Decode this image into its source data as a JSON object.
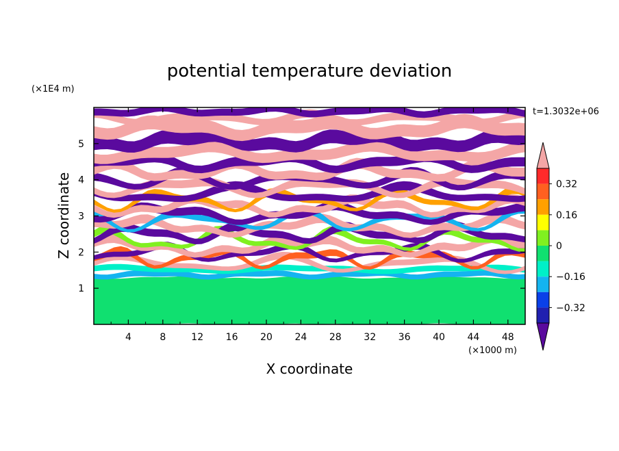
{
  "chart_data": {
    "type": "heatmap",
    "title": "potential temperature deviation",
    "xlabel": "X coordinate",
    "ylabel": "Z coordinate",
    "x_unit": "(×1000 m)",
    "y_unit": "(×1E4 m)",
    "time_label": "t=1.3032e+06",
    "xlim": [
      0,
      50
    ],
    "ylim": [
      0,
      6
    ],
    "x_ticks": [
      "4",
      "8",
      "12",
      "16",
      "20",
      "24",
      "28",
      "32",
      "36",
      "40",
      "44",
      "48"
    ],
    "y_ticks": [
      "1",
      "2",
      "3",
      "4",
      "5"
    ],
    "colorbar": {
      "labels": [
        "0.32",
        "0.16",
        "0",
        "−0.16",
        "−0.32"
      ],
      "label_values": [
        0.32,
        0.16,
        0,
        -0.16,
        -0.32
      ],
      "levels": [
        -0.4,
        -0.32,
        -0.24,
        -0.16,
        -0.08,
        0,
        0.08,
        0.16,
        0.24,
        0.32,
        0.4
      ],
      "colors": [
        "#5a0a9e",
        "#2020b0",
        "#0a40e8",
        "#14b4f0",
        "#00f0c8",
        "#10e070",
        "#80f020",
        "#ffff00",
        "#ffa000",
        "#ff6020",
        "#ff2a2a",
        "#f4a6a6"
      ],
      "extend": "both"
    },
    "bands": [
      {
        "z0": 0.0,
        "z1": 1.3,
        "level": 5,
        "jitter": 0.05
      },
      {
        "z0": 1.3,
        "z1": 1.45,
        "level": 3,
        "jitter": 0.1
      },
      {
        "z0": 1.45,
        "z1": 1.6,
        "level": 4,
        "jitter": 0.1
      },
      {
        "z0": 1.6,
        "z1": 1.75,
        "level": 11,
        "jitter": 0.35
      },
      {
        "z0": 1.75,
        "z1": 1.9,
        "level": 9,
        "jitter": 0.4
      },
      {
        "z0": 1.9,
        "z1": 2.05,
        "level": 0,
        "jitter": 0.35
      },
      {
        "z0": 2.05,
        "z1": 2.25,
        "level": 11,
        "jitter": 0.35
      },
      {
        "z0": 2.25,
        "z1": 2.4,
        "level": 6,
        "jitter": 0.45
      },
      {
        "z0": 2.4,
        "z1": 2.6,
        "level": 0,
        "jitter": 0.35
      },
      {
        "z0": 2.6,
        "z1": 2.8,
        "level": 11,
        "jitter": 0.35
      },
      {
        "z0": 2.8,
        "z1": 2.95,
        "level": 3,
        "jitter": 0.45
      },
      {
        "z0": 2.95,
        "z1": 3.15,
        "level": 0,
        "jitter": 0.35
      },
      {
        "z0": 3.15,
        "z1": 3.35,
        "level": 11,
        "jitter": 0.35
      },
      {
        "z0": 3.35,
        "z1": 3.5,
        "level": 8,
        "jitter": 0.45
      },
      {
        "z0": 3.5,
        "z1": 3.7,
        "level": 0,
        "jitter": 0.35
      },
      {
        "z0": 3.7,
        "z1": 3.9,
        "level": 11,
        "jitter": 0.35
      },
      {
        "z0": 3.9,
        "z1": 4.1,
        "level": 0,
        "jitter": 0.35
      },
      {
        "z0": 4.1,
        "z1": 4.35,
        "level": 11,
        "jitter": 0.35
      },
      {
        "z0": 4.35,
        "z1": 4.6,
        "level": 0,
        "jitter": 0.3
      },
      {
        "z0": 4.6,
        "z1": 4.9,
        "level": 11,
        "jitter": 0.3
      },
      {
        "z0": 4.9,
        "z1": 5.25,
        "level": 0,
        "jitter": 0.3
      },
      {
        "z0": 5.25,
        "z1": 5.6,
        "level": 11,
        "jitter": 0.3
      },
      {
        "z0": 5.6,
        "z1": 5.8,
        "level": 11,
        "jitter": 0.2
      },
      {
        "z0": 5.8,
        "z1": 6.0,
        "level": 0,
        "jitter": 0.15
      }
    ]
  }
}
